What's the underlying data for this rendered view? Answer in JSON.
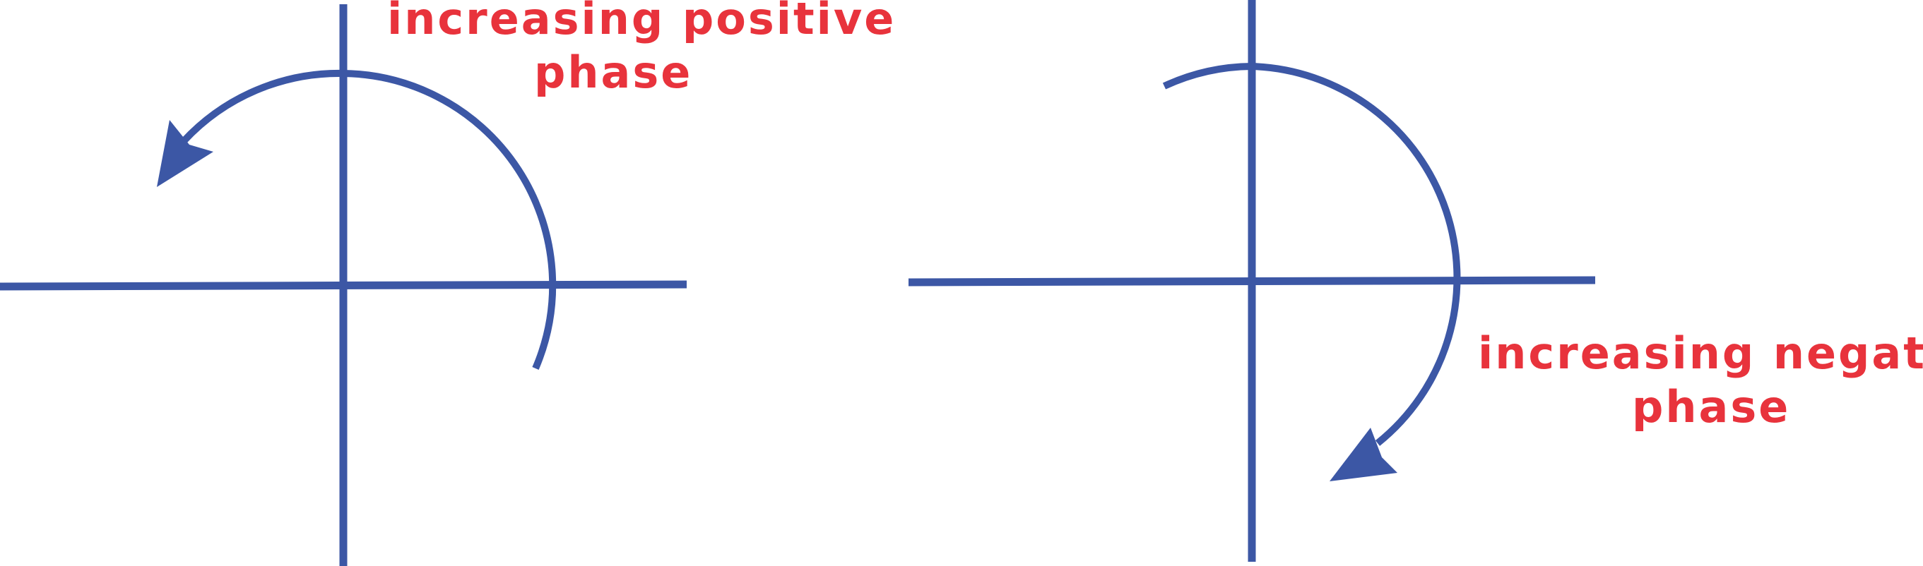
{
  "colors": {
    "axis": "#3c57a5",
    "arc": "#3c57a5",
    "label": "#e8333c",
    "background": "#ffffff"
  },
  "left_panel": {
    "label_line1": "increasing positive",
    "label_line2": "phase",
    "rotation": "counterclockwise"
  },
  "right_panel": {
    "label_line1": "increasing negative",
    "label_line2": "phase",
    "rotation": "clockwise"
  }
}
